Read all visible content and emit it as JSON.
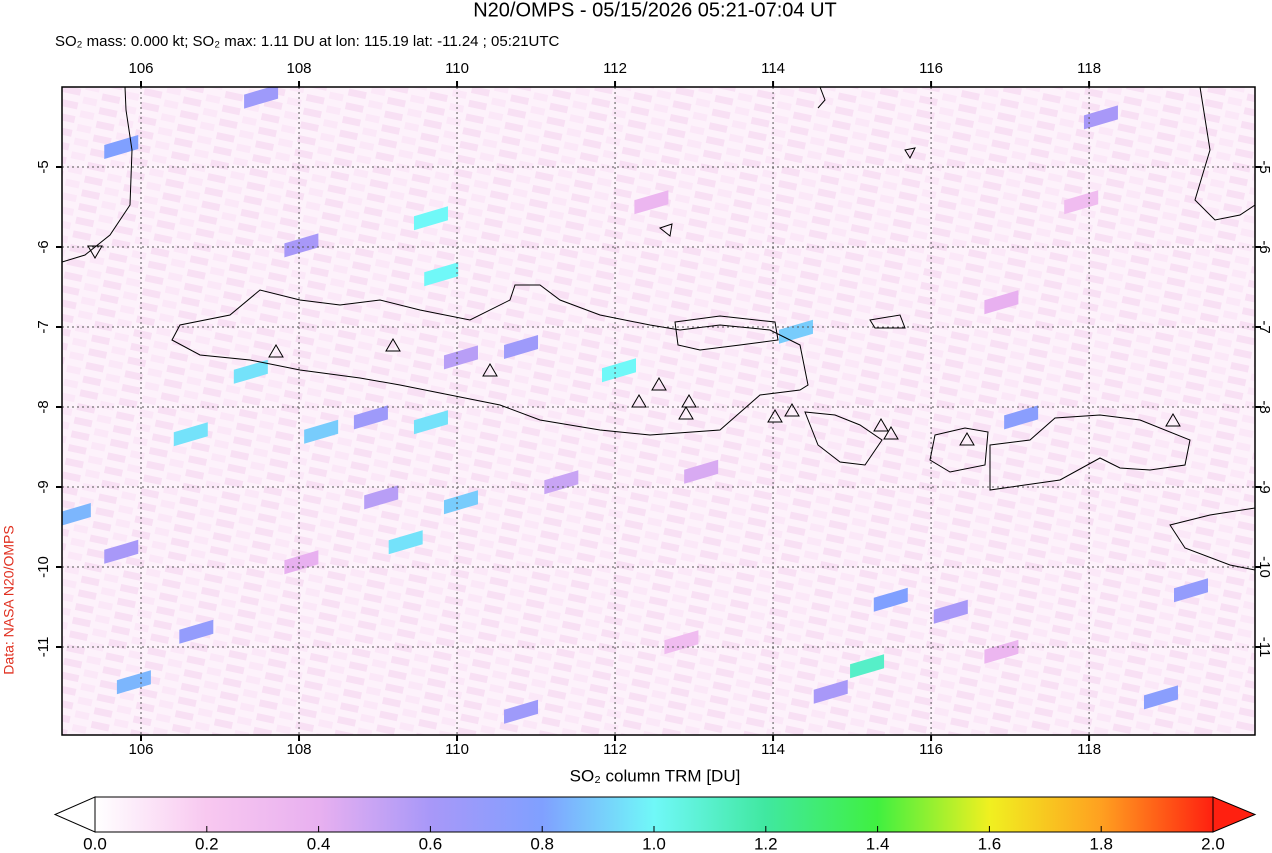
{
  "title": "N20/OMPS - 05/15/2026 05:21-07:04 UT",
  "subtitle": "SO₂ mass: 0.000 kt; SO₂ max: 1.11 DU at lon: 115.19 lat: -11.24 ; 05:21UTC",
  "credit": "Data: NASA N20/OMPS",
  "map": {
    "xlim": [
      105,
      120.1
    ],
    "ylim": [
      -12.1,
      -4.0
    ],
    "xticks": [
      106,
      108,
      110,
      112,
      114,
      116,
      118
    ],
    "yticks": [
      -5,
      -6,
      -7,
      -8,
      -9,
      -10,
      -11
    ],
    "grid": true,
    "pixels": [
      {
        "lon": 109.67,
        "lat": -5.64,
        "du": 1.0
      },
      {
        "lon": 109.8,
        "lat": -6.34,
        "du": 1.0
      },
      {
        "lon": 107.39,
        "lat": -7.56,
        "du": 0.95
      },
      {
        "lon": 108.28,
        "lat": -8.31,
        "du": 0.9
      },
      {
        "lon": 109.67,
        "lat": -8.19,
        "du": 0.95
      },
      {
        "lon": 110.05,
        "lat": -9.19,
        "du": 0.9
      },
      {
        "lon": 109.35,
        "lat": -9.69,
        "du": 0.95
      },
      {
        "lon": 112.05,
        "lat": -7.54,
        "du": 1.0
      },
      {
        "lon": 114.29,
        "lat": -7.06,
        "du": 0.9
      },
      {
        "lon": 115.19,
        "lat": -11.24,
        "du": 1.11
      },
      {
        "lon": 105.75,
        "lat": -4.75,
        "du": 0.8
      },
      {
        "lon": 105.15,
        "lat": -9.35,
        "du": 0.85
      },
      {
        "lon": 105.91,
        "lat": -11.44,
        "du": 0.85
      },
      {
        "lon": 106.63,
        "lat": -8.34,
        "du": 0.95
      },
      {
        "lon": 107.52,
        "lat": -4.12,
        "du": 0.65
      },
      {
        "lon": 108.03,
        "lat": -5.98,
        "du": 0.6
      },
      {
        "lon": 110.81,
        "lat": -7.25,
        "du": 0.65
      },
      {
        "lon": 108.91,
        "lat": -8.13,
        "du": 0.65
      },
      {
        "lon": 110.05,
        "lat": -7.38,
        "du": 0.55
      },
      {
        "lon": 110.81,
        "lat": -11.81,
        "du": 0.65
      },
      {
        "lon": 106.7,
        "lat": -10.81,
        "du": 0.7
      },
      {
        "lon": 115.49,
        "lat": -10.41,
        "du": 0.8
      },
      {
        "lon": 119.29,
        "lat": -10.29,
        "du": 0.7
      },
      {
        "lon": 117.14,
        "lat": -8.13,
        "du": 0.75
      },
      {
        "lon": 118.91,
        "lat": -11.63,
        "du": 0.75
      },
      {
        "lon": 116.25,
        "lat": -10.56,
        "du": 0.6
      },
      {
        "lon": 114.73,
        "lat": -11.56,
        "du": 0.6
      },
      {
        "lon": 118.15,
        "lat": -4.38,
        "du": 0.6
      },
      {
        "lon": 105.75,
        "lat": -9.81,
        "du": 0.6
      },
      {
        "lon": 109.04,
        "lat": -9.13,
        "du": 0.55
      },
      {
        "lon": 111.32,
        "lat": -8.94,
        "du": 0.5
      },
      {
        "lon": 113.09,
        "lat": -8.81,
        "du": 0.45
      },
      {
        "lon": 116.89,
        "lat": -6.69,
        "du": 0.4
      },
      {
        "lon": 112.46,
        "lat": -5.44,
        "du": 0.35
      },
      {
        "lon": 108.03,
        "lat": -9.94,
        "du": 0.4
      },
      {
        "lon": 117.9,
        "lat": -5.44,
        "du": 0.3
      },
      {
        "lon": 112.84,
        "lat": -10.94,
        "du": 0.3
      },
      {
        "lon": 116.89,
        "lat": -11.06,
        "du": 0.35
      }
    ]
  },
  "colorbar": {
    "label": "SO₂ column TRM [DU]",
    "lim": [
      0,
      2
    ],
    "ticks": [
      {
        "value": 0,
        "label": "0.0"
      },
      {
        "value": 0.2,
        "label": "0.2"
      },
      {
        "value": 0.4,
        "label": "0.4"
      },
      {
        "value": 0.6,
        "label": "0.6"
      },
      {
        "value": 0.8,
        "label": "0.8"
      },
      {
        "value": 1,
        "label": "1.0"
      },
      {
        "value": 1.2,
        "label": "1.2"
      },
      {
        "value": 1.4,
        "label": "1.4"
      },
      {
        "value": 1.6,
        "label": "1.6"
      },
      {
        "value": 1.8,
        "label": "1.8"
      },
      {
        "value": 2,
        "label": "2.0"
      }
    ],
    "colors": [
      [
        0,
        "#ffffff"
      ],
      [
        0.2,
        "#f8c8f0"
      ],
      [
        0.4,
        "#e8b0f0"
      ],
      [
        0.6,
        "#a898f8"
      ],
      [
        0.8,
        "#80a0ff"
      ],
      [
        1.0,
        "#70f8f8"
      ],
      [
        1.2,
        "#40e8a0"
      ],
      [
        1.4,
        "#40f040"
      ],
      [
        1.6,
        "#f0f020"
      ],
      [
        1.8,
        "#ffa020"
      ],
      [
        2.0,
        "#ff2010"
      ]
    ]
  }
}
